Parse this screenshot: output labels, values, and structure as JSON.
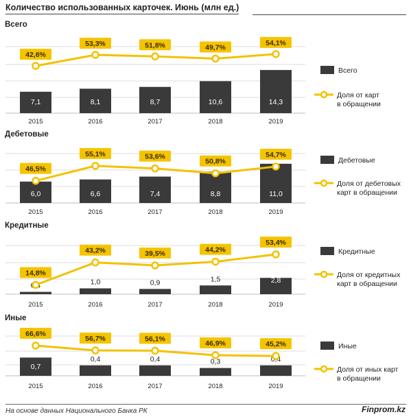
{
  "title": "Количество использованных карточек. Июнь (млн ед.)",
  "colors": {
    "bar": "#3a3a3a",
    "line": "#f2c200",
    "label_bg": "#f5c400",
    "grid": "#dddddd"
  },
  "footer": {
    "source": "На основе данных Национального Банка РК",
    "brand": "Finprom.kz"
  },
  "chart_data": [
    {
      "type": "bar",
      "title": "Всего",
      "categories": [
        "2015",
        "2016",
        "2017",
        "2018",
        "2019"
      ],
      "series": [
        {
          "name": "Всего",
          "values": [
            7.1,
            8.1,
            8.7,
            10.6,
            14.3
          ],
          "labels": [
            "7,1",
            "8,1",
            "8,7",
            "10,6",
            "14,3"
          ]
        },
        {
          "name": "Доля от карт в обращении",
          "type": "line",
          "values": [
            42.6,
            53.3,
            51.8,
            49.7,
            54.1
          ],
          "labels": [
            "42,6%",
            "53,3%",
            "51,8%",
            "49,7%",
            "54,1%"
          ]
        }
      ],
      "legend": [
        "Всего",
        "Доля от карт",
        "в обращении"
      ]
    },
    {
      "type": "bar",
      "title": "Дебетовые",
      "categories": [
        "2015",
        "2016",
        "2017",
        "2018",
        "2019"
      ],
      "series": [
        {
          "name": "Дебетовые",
          "values": [
            6.0,
            6.6,
            7.4,
            8.8,
            11.0
          ],
          "labels": [
            "6,0",
            "6,6",
            "7,4",
            "8,8",
            "11,0"
          ]
        },
        {
          "name": "Доля от дебетовых карт в обращении",
          "type": "line",
          "values": [
            46.5,
            55.1,
            53.6,
            50.8,
            54.7
          ],
          "labels": [
            "46,5%",
            "55,1%",
            "53,6%",
            "50,8%",
            "54,7%"
          ]
        }
      ],
      "legend": [
        "Дебетовые",
        "Доля от дебетовых",
        "карт в обращении"
      ]
    },
    {
      "type": "bar",
      "title": "Кредитные",
      "categories": [
        "2015",
        "2016",
        "2017",
        "2018",
        "2019"
      ],
      "series": [
        {
          "name": "Кредитные",
          "values": [
            0.4,
            1.0,
            0.9,
            1.5,
            2.8
          ],
          "labels": [
            "0,4",
            "1,0",
            "0,9",
            "1,5",
            "2,8"
          ]
        },
        {
          "name": "Доля от кредитных карт в обращении",
          "type": "line",
          "values": [
            14.8,
            43.2,
            39.5,
            44.2,
            53.4
          ],
          "labels": [
            "14,8%",
            "43,2%",
            "39,5%",
            "44,2%",
            "53,4%"
          ]
        }
      ],
      "legend": [
        "Кредитные",
        "Доля от кредитных",
        "карт в обращении"
      ]
    },
    {
      "type": "bar",
      "title": "Иные",
      "categories": [
        "2015",
        "2016",
        "2017",
        "2018",
        "2019"
      ],
      "series": [
        {
          "name": "Иные",
          "values": [
            0.7,
            0.4,
            0.4,
            0.3,
            0.4
          ],
          "labels": [
            "0,7",
            "0,4",
            "0,4",
            "0,3",
            "0,4"
          ]
        },
        {
          "name": "Доля от иных карт в обращении",
          "type": "line",
          "values": [
            66.6,
            56.7,
            56.1,
            46.9,
            45.2
          ],
          "labels": [
            "66,6%",
            "56,7%",
            "56,1%",
            "46,9%",
            "45,2%"
          ]
        }
      ],
      "legend": [
        "Иные",
        "Доля от иных карт",
        "в обращении"
      ]
    }
  ]
}
